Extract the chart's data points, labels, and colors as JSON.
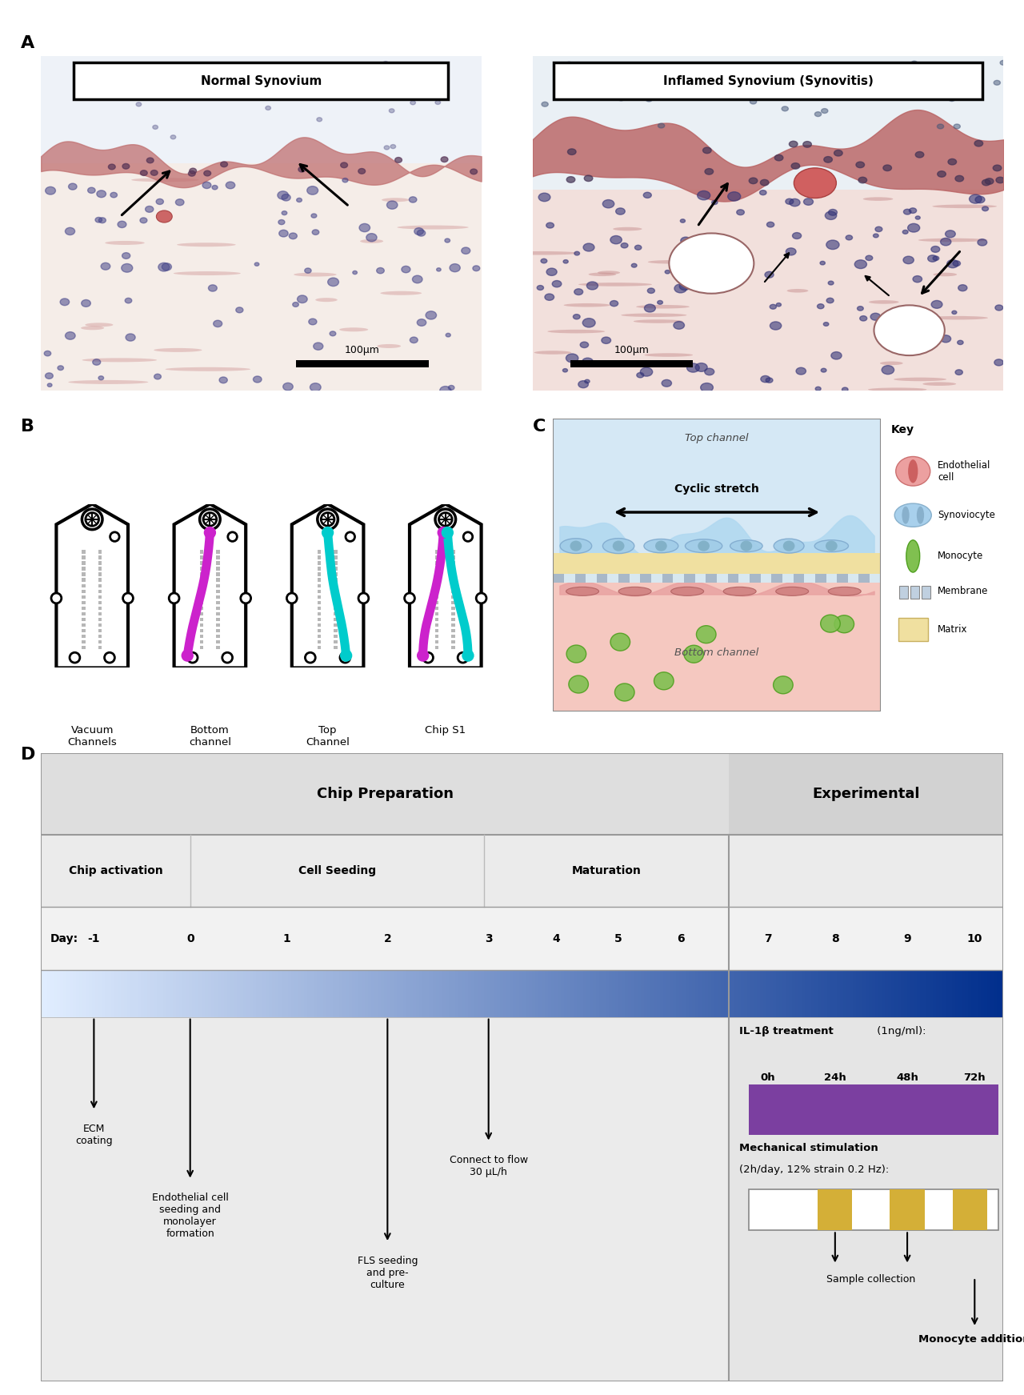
{
  "panel_A_label": "A",
  "panel_B_label": "B",
  "panel_C_label": "C",
  "panel_D_label": "D",
  "normal_title": "Normal Synovium",
  "inflamed_title": "Inflamed Synovium (Synovitis)",
  "scale_bar_text": "100μm",
  "chip_labels": [
    "Vacuum\nChannels",
    "Bottom\nchannel",
    "Top\nChannel",
    "Chip S1"
  ],
  "top_channel_text": "Top channel",
  "bottom_channel_text": "Bottom channel",
  "cyclic_stretch_text": "Cyclic stretch",
  "key_title": "Key",
  "key_items": [
    "Endothelial\ncell",
    "Synoviocyte",
    "Monocyte",
    "Membrane",
    "Matrix"
  ],
  "chip_prep_title": "Chip Preparation",
  "experimental_title": "Experimental",
  "chip_activation": "Chip activation",
  "cell_seeding": "Cell Seeding",
  "maturation": "Maturation",
  "day_label": "Day:",
  "ecm_coating": "ECM\ncoating",
  "endo_cell": "Endothelial cell\nseeding and\nmonolayer\nformation",
  "fls_seeding": "FLS seeding\nand pre-\nculture",
  "connect_flow": "Connect to flow\n30 μL/h",
  "il1b_label_bold": "IL-1β treatment",
  "il1b_label_rest": " (1ng/ml):",
  "il1b_times": [
    "0h",
    "24h",
    "48h",
    "72h"
  ],
  "mech_stim_bold": "Mechanical stimulation",
  "mech_stim_rest": "\n(2h/day, 12% strain 0.2 Hz):",
  "sample_collection": "Sample collection",
  "monocyte_addition": "Monocyte addition",
  "il1b_bar_color": "#7B3FA0",
  "mech_bar_color": "#D4AF37",
  "fig_bg": "#FFFFFF",
  "panel_D_bg": "#EBEBEB",
  "panel_D_right_bg": "#E0E0E0"
}
